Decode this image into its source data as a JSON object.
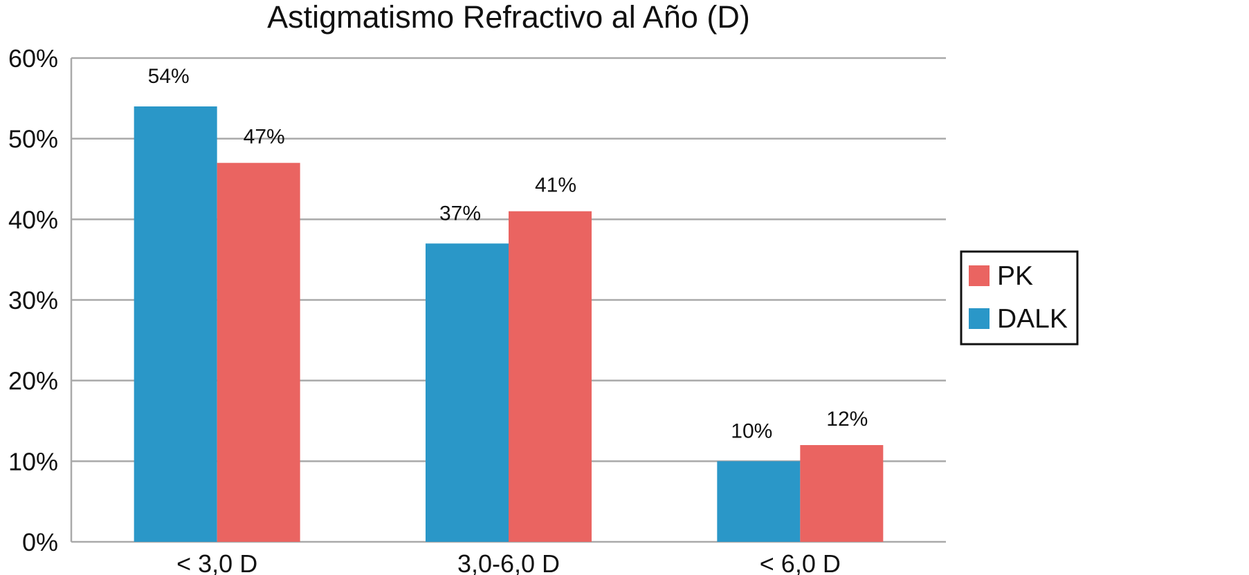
{
  "chart_data": {
    "type": "bar",
    "title": "Astigmatismo Refractivo al Año (D)",
    "xlabel": "",
    "ylabel": "",
    "categories": [
      "< 3,0 D",
      "3,0-6,0 D",
      "< 6,0 D"
    ],
    "series": [
      {
        "name": "DALK",
        "color": "#2a97c8",
        "values": [
          54,
          37,
          10
        ],
        "labels": [
          "54%",
          "37%",
          "10%"
        ]
      },
      {
        "name": "PK",
        "color": "#ea6461",
        "values": [
          47,
          41,
          12
        ],
        "labels": [
          "47%",
          "41%",
          "12%"
        ]
      }
    ],
    "ylim": [
      0,
      60
    ],
    "yticks": [
      0,
      10,
      20,
      30,
      40,
      50,
      60
    ],
    "ytick_labels": [
      "0%",
      "10%",
      "20%",
      "30%",
      "40%",
      "50%",
      "60%"
    ],
    "grid": true,
    "legend": {
      "position": "right",
      "entries": [
        "PK",
        "DALK"
      ]
    }
  }
}
